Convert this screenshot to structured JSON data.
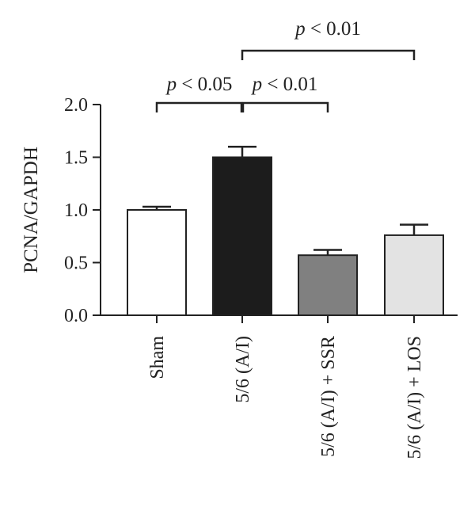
{
  "chart_data": {
    "type": "bar",
    "title": "",
    "xlabel": "",
    "ylabel": "PCNA/GAPDH",
    "ylim": [
      0,
      2.0
    ],
    "yticks": [
      "0.0",
      "0.5",
      "1.0",
      "1.5",
      "2.0"
    ],
    "categories": [
      "Sham",
      "5/6 (A/I)",
      "5/6 (A/I) + SSR",
      "5/6 (A/I) + LOS"
    ],
    "values": [
      1.0,
      1.5,
      0.57,
      0.76
    ],
    "errors": [
      0.03,
      0.1,
      0.05,
      0.1
    ],
    "colors": [
      "#ffffff",
      "#1c1c1c",
      "#808080",
      "#e3e3e3"
    ],
    "significance": [
      {
        "from": 0,
        "to": 1,
        "p_prefix": "p",
        "p_rest": " < 0.05"
      },
      {
        "from": 1,
        "to": 2,
        "p_prefix": "p",
        "p_rest": " < 0.01"
      },
      {
        "from": 1,
        "to": 3,
        "p_prefix": "p",
        "p_rest": " < 0.01"
      }
    ],
    "grid": false,
    "legend": "none"
  }
}
